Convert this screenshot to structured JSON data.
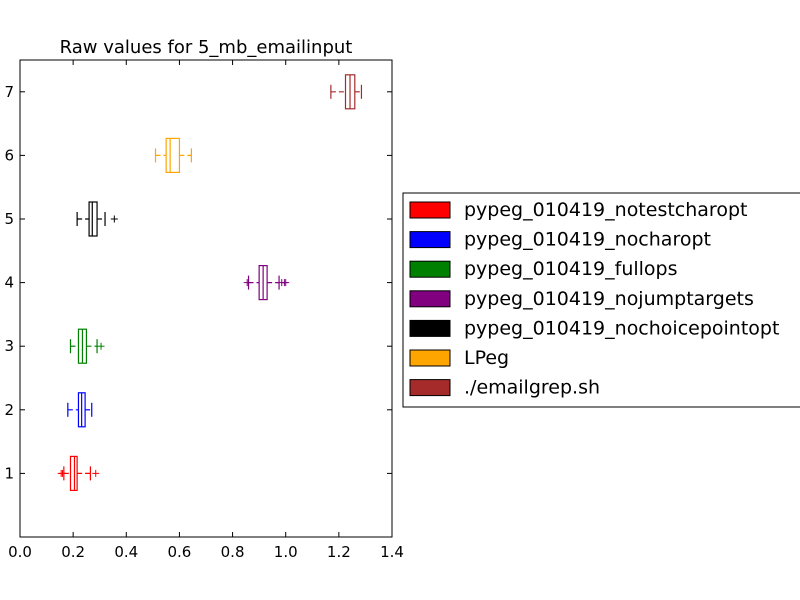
{
  "chart_data": {
    "type": "boxplot",
    "orientation": "horizontal",
    "title": "Raw values for 5_mb_emailinput",
    "xlabel": "",
    "ylabel": "",
    "xlim": [
      0.0,
      1.4
    ],
    "ylim": [
      0,
      7.5
    ],
    "xticks": [
      "0.0",
      "0.2",
      "0.4",
      "0.6",
      "0.8",
      "1.0",
      "1.2",
      "1.4"
    ],
    "yticks": [
      "1",
      "2",
      "3",
      "4",
      "5",
      "6",
      "7"
    ],
    "grid": false,
    "legend_position": "outside-right",
    "series": [
      {
        "name": "pypeg_010419_notestcharopt",
        "color": "#ff0000",
        "position": 1,
        "whisker_low": 0.165,
        "q1": 0.19,
        "median": 0.205,
        "q3": 0.215,
        "whisker_high": 0.265,
        "outliers": [
          0.155,
          0.16,
          0.285
        ]
      },
      {
        "name": "pypeg_010419_nocharopt",
        "color": "#0000ff",
        "position": 2,
        "whisker_low": 0.18,
        "q1": 0.22,
        "median": 0.232,
        "q3": 0.245,
        "whisker_high": 0.27,
        "outliers": []
      },
      {
        "name": "pypeg_010419_fullops",
        "color": "#008000",
        "position": 3,
        "whisker_low": 0.19,
        "q1": 0.22,
        "median": 0.235,
        "q3": 0.25,
        "whisker_high": 0.29,
        "outliers": [
          0.305
        ]
      },
      {
        "name": "pypeg_010419_nojumptargets",
        "color": "#800080",
        "position": 4,
        "whisker_low": 0.86,
        "q1": 0.9,
        "median": 0.915,
        "q3": 0.93,
        "whisker_high": 0.975,
        "outliers": [
          0.855,
          0.985,
          0.995,
          1.0
        ]
      },
      {
        "name": "pypeg_010419_nochoicepointopt",
        "color": "#000000",
        "position": 5,
        "whisker_low": 0.215,
        "q1": 0.26,
        "median": 0.272,
        "q3": 0.29,
        "whisker_high": 0.32,
        "outliers": [
          0.355
        ]
      },
      {
        "name": "LPeg",
        "color": "#ffa500",
        "position": 6,
        "whisker_low": 0.51,
        "q1": 0.55,
        "median": 0.565,
        "q3": 0.6,
        "whisker_high": 0.645,
        "outliers": []
      },
      {
        "name": "./emailgrep.sh",
        "color": "#a52a2a",
        "position": 7,
        "whisker_low": 1.17,
        "q1": 1.225,
        "median": 1.242,
        "q3": 1.26,
        "whisker_high": 1.285,
        "outliers": []
      }
    ]
  }
}
